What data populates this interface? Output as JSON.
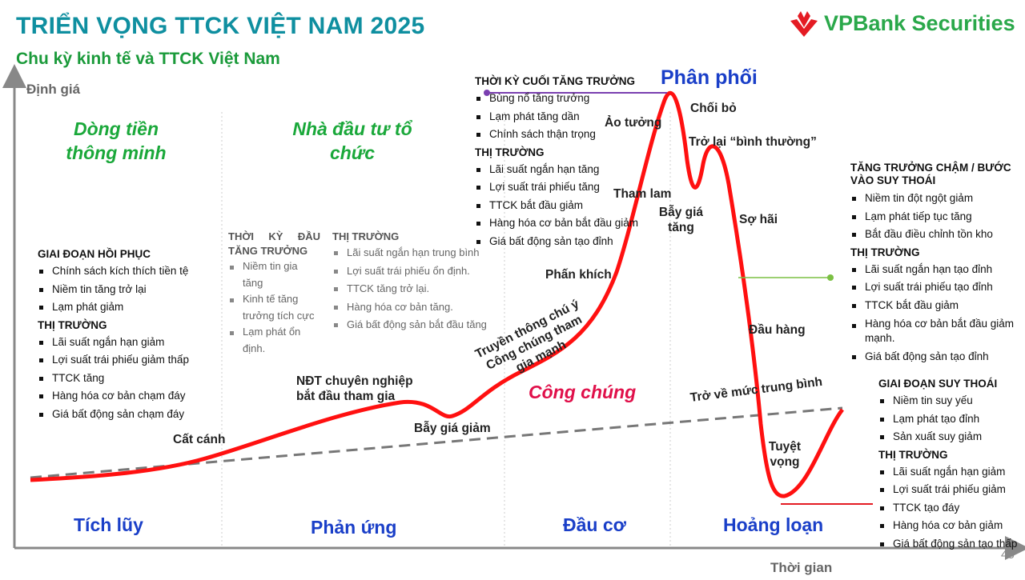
{
  "header": {
    "title": "TRIỂN VỌNG TTCK VIỆT NAM 2025",
    "subtitle": "Chu kỳ kinh tế và TTCK Việt Nam",
    "logo_text": "VPBank Securities",
    "page_number": "45"
  },
  "axes": {
    "y_label": "Định giá",
    "x_label": "Thời gian"
  },
  "investors": {
    "smart_money": "Dòng tiền thông minh",
    "institutional": "Nhà đầu tư tổ chức",
    "public": "Công chúng"
  },
  "phases": [
    "Tích lũy",
    "Phản ứng",
    "Đầu cơ",
    "Hoảng loạn"
  ],
  "peak_phase": "Phân phối",
  "curve_labels": {
    "takeoff": "Cất cánh",
    "pro_join": "NĐT chuyên nghiệp bắt đầu tham gia",
    "bear_trap": "Bẫy giá giảm",
    "media": "Truyền thông chú ý Công chúng tham gia mạnh",
    "enthusiasm": "Phấn khích",
    "greed": "Tham lam",
    "illusion": "Ảo tưởng",
    "denial": "Chối bỏ",
    "bull_trap": "Bẫy giá tăng",
    "return_normal": "Trở lại “bình thường”",
    "fear": "Sợ hãi",
    "capitulation": "Đầu hàng",
    "mean_revert": "Trở về mức trung bình",
    "despair": "Tuyệt vọng"
  },
  "boxes": {
    "recovery": {
      "title": "GIAI ĐOẠN HỒI PHỤC",
      "items": [
        "Chính sách kích thích tiền tệ",
        "Niềm tin tăng trở lại",
        "Lạm phát giảm"
      ],
      "market_title": "THỊ TRƯỜNG",
      "market": [
        "Lãi suất ngắn hạn giảm",
        "Lợi suất trái phiếu giảm thấp",
        "TTCK tăng",
        "Hàng hóa cơ bản chạm đáy",
        "Giá bất động sản chạm đáy"
      ]
    },
    "early": {
      "title": "THỜI KỲ ĐẦU TĂNG TRƯỞNG",
      "items": [
        "Niềm tin gia tăng",
        "Kinh tế tăng trưởng tích cực",
        "Lạm phát ổn định."
      ],
      "market_title": "THỊ TRƯỜNG",
      "market": [
        "Lãi suất ngắn hạn trung bình",
        "Lợi suất trái phiếu ổn định.",
        "TTCK tăng trở lại.",
        "Hàng hóa cơ bản tăng.",
        "Giá bất động sản bắt đầu tăng"
      ]
    },
    "late": {
      "title": "THỜI KỲ CUỐI TĂNG TRƯỞNG",
      "items": [
        "Bùng nổ tăng trưởng",
        "Lạm phát tăng dần",
        "Chính sách thận trọng"
      ],
      "market_title": "THỊ TRƯỜNG",
      "market": [
        "Lãi suất ngắn hạn tăng",
        "Lợi suất trái phiếu tăng",
        "TTCK bắt đầu giảm",
        "Hàng hóa cơ bản bắt đầu giảm",
        "Giá bất động sản tạo đỉnh"
      ]
    },
    "slowdown": {
      "title": "TĂNG TRƯỞNG CHẬM / BƯỚC VÀO SUY THOÁI",
      "items": [
        "Niềm tin đột ngột giảm",
        "Lạm phát tiếp tục tăng",
        "Bắt đầu điều chỉnh tồn kho"
      ],
      "market_title": "THỊ TRƯỜNG",
      "market": [
        "Lãi suất ngắn hạn tạo đỉnh",
        "Lợi suất trái phiếu tạo đỉnh",
        "TTCK bắt đầu giảm",
        "Hàng hóa cơ bản bắt đầu giảm mạnh.",
        "Giá bất động sản tạo đỉnh"
      ]
    },
    "recession": {
      "title": "GIAI ĐOẠN SUY THOÁI",
      "items": [
        "Niềm tin suy yếu",
        "Lạm phát tạo đỉnh",
        "Sản xuất suy giảm"
      ],
      "market_title": "THỊ TRƯỜNG",
      "market": [
        "Lãi suất ngắn hạn giảm",
        "Lợi suất trái phiếu giảm",
        "TTCK tạo đáy",
        "Hàng hóa cơ bản giảm",
        "Giá bất động sản tạo thấp"
      ]
    }
  },
  "colors": {
    "title": "#0f8fa0",
    "green": "#1aa83a",
    "phase": "#1a3fc8",
    "curve": "#ff1010",
    "public": "#e0104a"
  }
}
